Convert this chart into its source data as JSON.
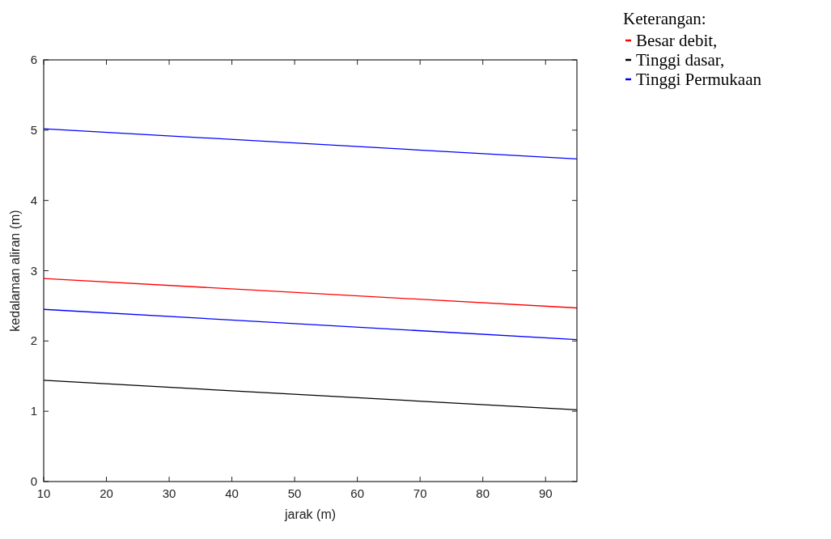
{
  "chart_data": {
    "type": "line",
    "xlabel": "jarak (m)",
    "ylabel": "kedalaman aliran (m)",
    "legend_title": "Keterangan:",
    "legend": "right",
    "x": [
      10,
      95
    ],
    "series": [
      {
        "name": "Besar debit,",
        "color": "#ff0000",
        "values": [
          2.89,
          2.47
        ]
      },
      {
        "name": "Tinggi dasar,",
        "color": "#000000",
        "values": [
          1.44,
          1.02
        ]
      },
      {
        "name": "Tinggi Permukaan",
        "color": "#0000ff",
        "values": [
          5.02,
          4.59
        ]
      },
      {
        "color": "#0000ff",
        "values": [
          2.45,
          2.02
        ]
      }
    ],
    "xlim": [
      10,
      95
    ],
    "xticks": [
      10,
      20,
      30,
      40,
      50,
      60,
      70,
      80,
      90
    ],
    "ylim": [
      0,
      6
    ],
    "yticks": [
      0,
      1,
      2,
      3,
      4,
      5,
      6
    ],
    "grid": false,
    "marker": "none",
    "line_style": "solid"
  }
}
